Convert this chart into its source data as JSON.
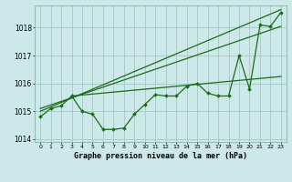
{
  "xlabel": "Graphe pression niveau de la mer (hPa)",
  "bg_color": "#cce8e8",
  "grid_color": "#aacccc",
  "line_color": "#1a6b1a",
  "x_values": [
    0,
    1,
    2,
    3,
    4,
    5,
    6,
    7,
    8,
    9,
    10,
    11,
    12,
    13,
    14,
    15,
    16,
    17,
    18,
    19,
    20,
    21,
    22,
    23
  ],
  "main_series": [
    1014.8,
    1015.1,
    1015.2,
    1015.55,
    1015.0,
    1014.9,
    1014.35,
    1014.35,
    1014.4,
    1014.9,
    1015.25,
    1015.6,
    1015.55,
    1015.55,
    1015.9,
    1016.0,
    1015.65,
    1015.55,
    1015.55,
    1017.0,
    1015.8,
    1018.1,
    1018.05,
    1018.55
  ],
  "trend_line1_x": [
    0,
    23
  ],
  "trend_line1_y": [
    1015.0,
    1018.65
  ],
  "trend_line2_x": [
    0,
    23
  ],
  "trend_line2_y": [
    1015.1,
    1018.05
  ],
  "trend_line3_x": [
    3,
    23
  ],
  "trend_line3_y": [
    1015.55,
    1016.25
  ],
  "ylim": [
    1013.9,
    1018.8
  ],
  "yticks": [
    1014,
    1015,
    1016,
    1017,
    1018
  ],
  "xlim": [
    -0.5,
    23.5
  ],
  "xlabel_fontsize": 6.0,
  "ytick_fontsize": 5.5,
  "xtick_fontsize": 4.5
}
